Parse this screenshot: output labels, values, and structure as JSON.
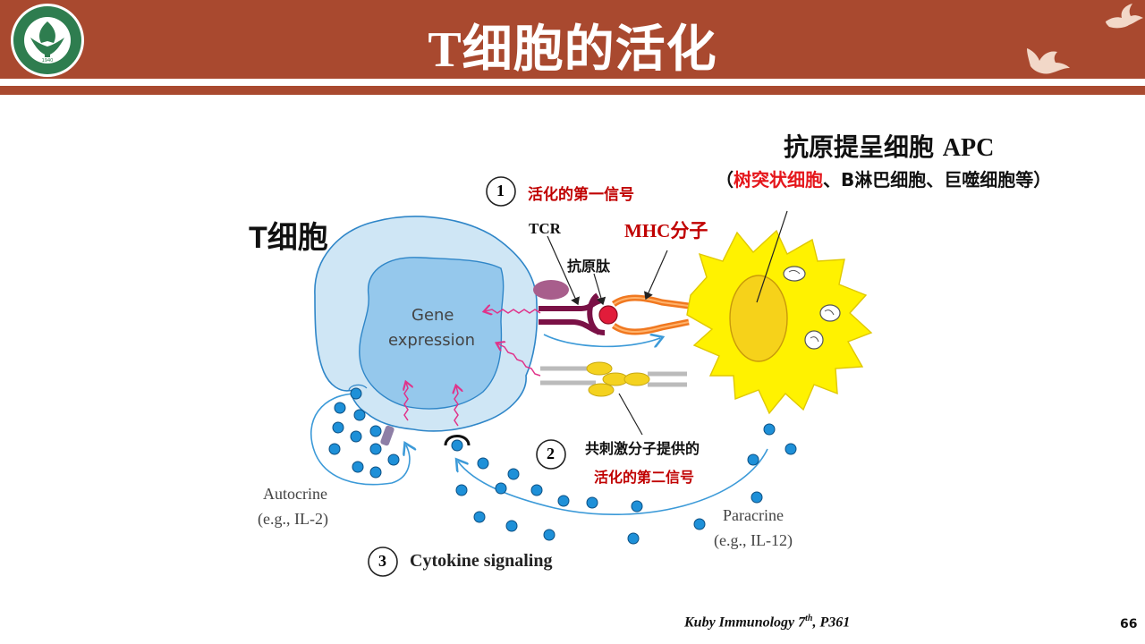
{
  "header": {
    "title": "T细胞的活化"
  },
  "logo": {
    "text": "北京理工大学 · BEIJING INSTITUTE OF TECHNOLOGY",
    "year": "1940"
  },
  "diagram": {
    "t_cell_label": "T细胞",
    "apc_title": "抗原提呈细胞",
    "apc_abbr": "APC",
    "apc_sub_open": "（",
    "apc_sub_red": "树突状细胞",
    "apc_sub_rest": "、B淋巴细胞、巨噬细胞等）",
    "signal1_num": "1",
    "signal1": "活化的第一信号",
    "tcr": "TCR",
    "mhc": "MHC分子",
    "peptide": "抗原肽",
    "gene_line1": "Gene",
    "gene_line2": "expression",
    "signal2_num": "2",
    "costim": "共刺激分子提供的",
    "signal2": "活化的第二信号",
    "autocrine": "Autocrine",
    "autocrine_eg": "(e.g., IL-2)",
    "paracrine": "Paracrine",
    "paracrine_eg": "(e.g., IL-12)",
    "signal3_num": "3",
    "cytokine": "Cytokine signaling"
  },
  "footer": {
    "source": "Kuby Immunology 7",
    "source_sup": "th",
    "source_page": ", P361",
    "page_number": "66"
  },
  "colors": {
    "banner": "#A9492F",
    "t_cell": "#CFE6F5",
    "nucleus": "#95C8EC",
    "apc": "#FFF200",
    "apc_nucleus": "#F6D21A",
    "cytokine_dot": "#1E90D8",
    "accent_red": "#C00000",
    "arrow_pink": "#E0338A"
  }
}
